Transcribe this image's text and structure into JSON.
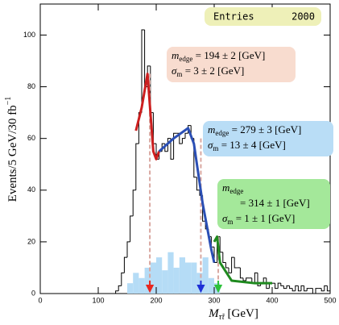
{
  "chart_data": {
    "type": "histogram",
    "xlabel": {
      "main": "M",
      "sub": "τ̃τ",
      "unit": " [GeV]"
    },
    "ylabel": {
      "main": "Events/5 GeV/30 fb",
      "sup": "−1"
    },
    "xlim": [
      0,
      500
    ],
    "xticks": [
      0,
      100,
      200,
      300,
      400,
      500
    ],
    "ylim": [
      0,
      112
    ],
    "yticks": [
      0,
      20,
      40,
      60,
      80,
      100
    ],
    "entries": {
      "label": "Entries",
      "value": 2000
    },
    "bins": [
      130,
      135,
      140,
      145,
      150,
      155,
      160,
      165,
      170,
      175,
      180,
      185,
      190,
      195,
      200,
      205,
      210,
      215,
      220,
      225,
      230,
      235,
      240,
      245,
      250,
      255,
      260,
      265,
      270,
      275,
      280,
      285,
      290,
      295,
      300,
      305,
      310,
      315,
      320,
      325,
      330,
      335,
      340,
      345,
      350,
      355,
      360,
      365,
      370,
      375,
      380,
      385,
      390,
      395,
      400,
      405,
      410,
      415,
      420,
      425,
      430,
      435,
      440,
      445,
      450,
      455,
      460,
      465,
      470,
      475,
      480,
      485,
      490,
      495,
      500
    ],
    "counts": [
      1,
      3,
      8,
      14,
      20,
      30,
      40,
      58,
      70,
      102,
      80,
      88,
      70,
      58,
      52,
      55,
      58,
      55,
      60,
      52,
      62,
      62,
      58,
      60,
      62,
      65,
      60,
      45,
      40,
      38,
      28,
      25,
      22,
      18,
      12,
      22,
      16,
      12,
      10,
      8,
      14,
      10,
      10,
      6,
      5,
      6,
      6,
      4,
      8,
      3,
      4,
      6,
      2,
      4,
      4,
      2,
      4,
      3,
      2,
      3,
      2,
      1,
      3,
      1,
      3,
      1,
      2,
      2,
      0,
      2,
      2,
      1,
      3,
      1
    ],
    "background": {
      "color": "#b5dcf6",
      "bins": [
        150,
        160,
        170,
        180,
        190,
        200,
        210,
        220,
        230,
        240,
        250,
        260,
        270,
        280,
        290,
        300,
        310
      ],
      "counts": [
        4,
        8,
        6,
        10,
        12,
        14,
        9,
        16,
        10,
        14,
        12,
        12,
        8,
        14,
        6,
        4
      ]
    },
    "fits": [
      {
        "color": "#cc1f1f",
        "x": [
          165,
          175,
          185,
          190,
          195,
          200,
          205
        ],
        "values": [
          63,
          72,
          85,
          70,
          55,
          52,
          55
        ]
      },
      {
        "color": "#2b4fb5",
        "x": [
          205,
          230,
          255,
          265,
          280,
          295,
          300
        ],
        "values": [
          55,
          60,
          64,
          58,
          35,
          17,
          12
        ]
      },
      {
        "color": "#1f8a1f",
        "x": [
          300,
          305,
          310,
          330,
          370,
          400
        ],
        "values": [
          20,
          22,
          12,
          5,
          4,
          4
        ]
      }
    ],
    "markers": [
      {
        "x": 189,
        "top": 85,
        "color": "#e8261f"
      },
      {
        "x": 277,
        "top": 60,
        "color": "#1d2fd6"
      },
      {
        "x": 307,
        "top": 22,
        "color": "#2cc23a"
      }
    ],
    "boxes": [
      {
        "color": "#f8dccf",
        "lines": [
          [
            "m",
            "edge",
            " = 194 ± 2 [GeV]"
          ],
          [
            "σ",
            "m",
            " = 3 ± 2 [GeV]"
          ]
        ]
      },
      {
        "color": "#b9ddf6",
        "lines": [
          [
            "m",
            "edge",
            " = 279 ± 3 [GeV]"
          ],
          [
            "σ",
            "m",
            " = 13 ± 4 [GeV]"
          ]
        ]
      },
      {
        "color": "#a4e89a",
        "lines": [
          [
            "m",
            "edge",
            ""
          ],
          [
            "",
            "",
            "= 314 ± 1 [GeV]"
          ],
          [
            "σ",
            "m",
            " = 1 ± 1 [GeV]"
          ]
        ]
      }
    ]
  }
}
